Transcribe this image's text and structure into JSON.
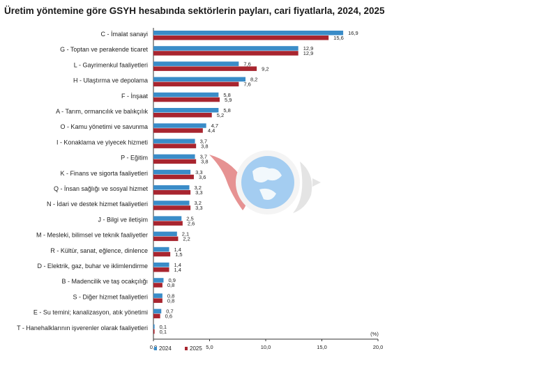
{
  "chart_data": {
    "type": "bar",
    "orientation": "horizontal",
    "title": "Üretim yöntemine göre GSYH hesabında sektörlerin payları, cari fiyatlarla, 2024, 2025",
    "unit_label": "(%)",
    "xlim": [
      0,
      20
    ],
    "xticks": [
      "0,0",
      "5,0",
      "10,0",
      "15,0",
      "20,0"
    ],
    "legend_position": "bottom-left",
    "categories": [
      "C - İmalat sanayi",
      "G - Toptan ve perakende ticaret",
      "L - Gayrimenkul faaliyetleri",
      "H - Ulaştırma ve depolama",
      "F - İnşaat",
      "A - Tarım, ormancılık ve balıkçılık",
      "O - Kamu yönetimi ve savunma",
      "I - Konaklama ve yiyecek hizmeti",
      "P - Eğitim",
      "K - Finans ve sigorta faaliyetleri",
      "Q - İnsan sağlığı ve sosyal hizmet",
      "N - İdari ve destek hizmet faaliyetleri",
      "J - Bilgi ve iletişim",
      "M - Mesleki, bilimsel ve teknik faaliyetler",
      "R - Kültür, sanat, eğlence, dinlence",
      "D - Elektrik, gaz, buhar ve iklimlendirme",
      "B - Madencilik ve taş ocakçılığı",
      "S - Diğer hizmet faaliyetleri",
      "E - Su temini; kanalizasyon, atık yönetimi",
      "T - Hanehalklarının işverenler olarak faaliyetleri"
    ],
    "series": [
      {
        "name": "2024",
        "color": "#3a8cc8",
        "values": [
          16.9,
          12.9,
          7.6,
          8.2,
          5.8,
          5.8,
          4.7,
          3.7,
          3.7,
          3.3,
          3.2,
          3.2,
          2.5,
          2.1,
          1.4,
          1.4,
          0.9,
          0.8,
          0.7,
          0.1
        ],
        "labels": [
          "16,9",
          "12,9",
          "7,6",
          "8,2",
          "5,8",
          "5,8",
          "4,7",
          "3,7",
          "3,7",
          "3,3",
          "3,2",
          "3,2",
          "2,5",
          "2,1",
          "1,4",
          "1,4",
          "0,9",
          "0,8",
          "0,7",
          "0,1"
        ]
      },
      {
        "name": "2025",
        "color": "#a8252f",
        "values": [
          15.6,
          12.9,
          9.2,
          7.6,
          5.9,
          5.2,
          4.4,
          3.8,
          3.8,
          3.6,
          3.3,
          3.3,
          2.6,
          2.2,
          1.5,
          1.4,
          0.8,
          0.8,
          0.6,
          0.1
        ],
        "labels": [
          "15,6",
          "12,9",
          "9,2",
          "7,6",
          "5,9",
          "5,2",
          "4,4",
          "3,8",
          "3,8",
          "3,6",
          "3,3",
          "3,3",
          "2,6",
          "2,2",
          "1,5",
          "1,4",
          "0,8",
          "0,8",
          "0,6",
          "0,1"
        ]
      }
    ]
  },
  "watermark": {
    "name": "globe-logo-icon",
    "colors": [
      "#c8102e",
      "#4a90d9"
    ]
  }
}
